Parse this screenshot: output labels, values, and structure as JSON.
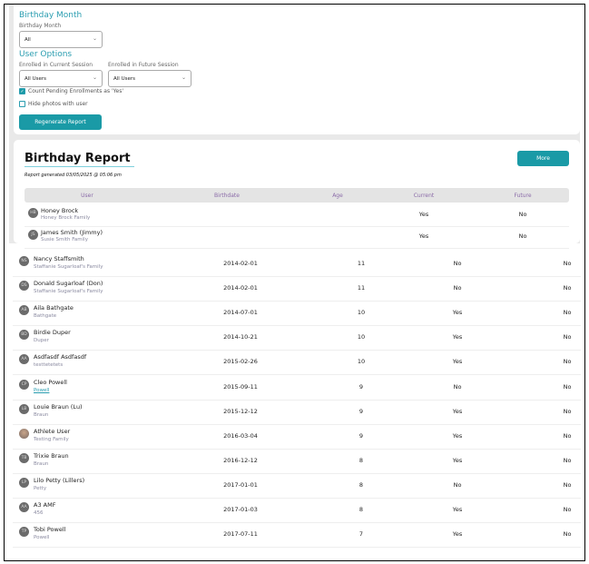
{
  "filters": {
    "birthday_section": "Birthday Month",
    "birthday_label": "Birthday Month",
    "birthday_value": "All",
    "user_options_section": "User Options",
    "current_label": "Enrolled in Current Session",
    "current_value": "All Users",
    "future_label": "Enrolled in Future Session",
    "future_value": "All Users",
    "count_pending_label": "Count Pending Enrollments as 'Yes'",
    "count_pending_checked": true,
    "hide_photos_label": "Hide photos with user",
    "hide_photos_checked": false,
    "regenerate_label": "Regenerate Report"
  },
  "report": {
    "title": "Birthday Report",
    "generated": "Report generated 03/05/2025 @ 05:06 pm",
    "more_label": "More",
    "columns": [
      "User",
      "Birthdate",
      "Age",
      "Current",
      "Future"
    ],
    "inner_rows": [
      {
        "initials": "HB",
        "name": "Honey Brock",
        "family": "Honey Brock Family",
        "birthdate": "",
        "age": "",
        "current": "Yes",
        "future": "No"
      },
      {
        "initials": "JS",
        "name": "James Smith (Jimmy)",
        "family": "Susie Smith Family",
        "birthdate": "",
        "age": "",
        "current": "Yes",
        "future": "No"
      }
    ],
    "rows": [
      {
        "initials": "NS",
        "name": "Nancy Staffsmith",
        "family": "Staffanie Sugarloaf's Family",
        "birthdate": "2014-02-01",
        "age": "11",
        "current": "No",
        "future": "No"
      },
      {
        "initials": "DS",
        "name": "Donald Sugarloaf (Don)",
        "family": "Staffanie Sugarloaf's Family",
        "birthdate": "2014-02-01",
        "age": "11",
        "current": "No",
        "future": "No"
      },
      {
        "initials": "AB",
        "name": "Aila Bathgate",
        "family": "Bathgate",
        "birthdate": "2014-07-01",
        "age": "10",
        "current": "Yes",
        "future": "No"
      },
      {
        "initials": "BD",
        "name": "Birdie Duper",
        "family": "Duper",
        "birthdate": "2014-10-21",
        "age": "10",
        "current": "Yes",
        "future": "No"
      },
      {
        "initials": "AA",
        "name": "Asdfasdf Asdfasdf",
        "family": "testtetetets",
        "birthdate": "2015-02-26",
        "age": "10",
        "current": "Yes",
        "future": "No"
      },
      {
        "initials": "CP",
        "name": "Cleo Powell",
        "family": "Powell",
        "family_link": true,
        "birthdate": "2015-09-11",
        "age": "9",
        "current": "No",
        "future": "No"
      },
      {
        "initials": "LB",
        "name": "Louie Braun (Lu)",
        "family": "Braun",
        "birthdate": "2015-12-12",
        "age": "9",
        "current": "Yes",
        "future": "No"
      },
      {
        "initials": "",
        "photo": true,
        "name": "Athlete User",
        "family": "Testing Family",
        "birthdate": "2016-03-04",
        "age": "9",
        "current": "Yes",
        "future": "No"
      },
      {
        "initials": "TB",
        "name": "Trixie Braun",
        "family": "Braun",
        "birthdate": "2016-12-12",
        "age": "8",
        "current": "Yes",
        "future": "No"
      },
      {
        "initials": "LP",
        "name": "Lilo Petty (Lillers)",
        "family": "Petty",
        "birthdate": "2017-01-01",
        "age": "8",
        "current": "No",
        "future": "No"
      },
      {
        "initials": "AA",
        "name": "A3 AMF",
        "family": "456",
        "birthdate": "2017-01-03",
        "age": "8",
        "current": "Yes",
        "future": "No"
      },
      {
        "initials": "TP",
        "name": "Tobi Powell",
        "family": "Powell",
        "birthdate": "2017-07-11",
        "age": "7",
        "current": "Yes",
        "future": "No"
      }
    ]
  },
  "colors": {
    "accent": "#1a9aa6",
    "heading": "#2a9db0",
    "header_text": "#8a6aa8"
  }
}
